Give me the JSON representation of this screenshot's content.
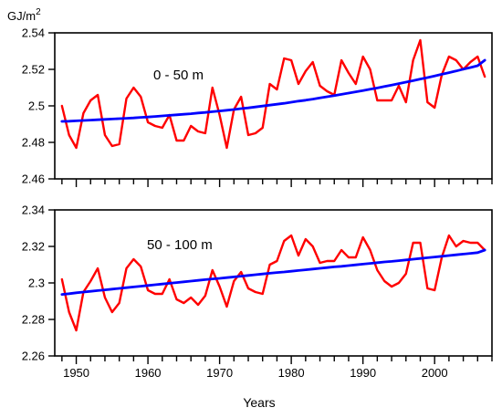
{
  "figure": {
    "unit_label": "GJ/m",
    "unit_superscript": "2",
    "x_axis_title": "Years"
  },
  "chart_data": [
    {
      "type": "line",
      "panel_label": "0 - 50 m",
      "x": [
        1948,
        1949,
        1950,
        1951,
        1952,
        1953,
        1954,
        1955,
        1956,
        1957,
        1958,
        1959,
        1960,
        1961,
        1962,
        1963,
        1964,
        1965,
        1966,
        1967,
        1968,
        1969,
        1970,
        1971,
        1972,
        1973,
        1974,
        1975,
        1976,
        1977,
        1978,
        1979,
        1980,
        1981,
        1982,
        1983,
        1984,
        1985,
        1986,
        1987,
        1988,
        1989,
        1990,
        1991,
        1992,
        1993,
        1994,
        1995,
        1996,
        1997,
        1998,
        1999,
        2000,
        2001,
        2002,
        2003,
        2004,
        2005,
        2006,
        2007
      ],
      "series": [
        {
          "color": "#ff0000",
          "values": [
            2.5,
            2.484,
            2.477,
            2.496,
            2.503,
            2.506,
            2.484,
            2.478,
            2.479,
            2.504,
            2.51,
            2.505,
            2.491,
            2.489,
            2.488,
            2.495,
            2.481,
            2.481,
            2.489,
            2.486,
            2.485,
            2.51,
            2.495,
            2.477,
            2.498,
            2.505,
            2.484,
            2.485,
            2.488,
            2.512,
            2.509,
            2.526,
            2.525,
            2.512,
            2.519,
            2.524,
            2.511,
            2.508,
            2.506,
            2.525,
            2.518,
            2.512,
            2.527,
            2.52,
            2.503,
            2.503,
            2.503,
            2.511,
            2.502,
            2.525,
            2.536,
            2.502,
            2.499,
            2.517,
            2.527,
            2.525,
            2.52,
            2.524,
            2.527,
            2.516
          ]
        },
        {
          "color": "#0000ff",
          "values": [
            2.4915,
            2.4916,
            2.4918,
            2.492,
            2.4922,
            2.4924,
            2.4926,
            2.4928,
            2.493,
            2.4932,
            2.4934,
            2.4937,
            2.4939,
            2.4942,
            2.4945,
            2.4948,
            2.4951,
            2.4954,
            2.4957,
            2.4961,
            2.4964,
            2.4968,
            2.4972,
            2.4976,
            2.498,
            2.4985,
            2.4989,
            2.4994,
            2.4999,
            2.5004,
            2.5009,
            2.5014,
            2.502,
            2.5026,
            2.5031,
            2.5037,
            2.5044,
            2.505,
            2.5056,
            2.5063,
            2.507,
            2.5077,
            2.5084,
            2.5091,
            2.5098,
            2.5106,
            2.5114,
            2.5122,
            2.513,
            2.5138,
            2.5147,
            2.5155,
            2.5164,
            2.5173,
            2.5182,
            2.5191,
            2.5201,
            2.521,
            2.522,
            2.525
          ]
        }
      ],
      "ylim": [
        2.46,
        2.54
      ],
      "yticks": [
        2.46,
        2.48,
        2.5,
        2.52,
        2.54
      ],
      "ytick_labels": [
        "2.46",
        "2.48",
        "2.5",
        "2.52",
        "2.54"
      ]
    },
    {
      "type": "line",
      "panel_label": "50 - 100 m",
      "x": [
        1948,
        1949,
        1950,
        1951,
        1952,
        1953,
        1954,
        1955,
        1956,
        1957,
        1958,
        1959,
        1960,
        1961,
        1962,
        1963,
        1964,
        1965,
        1966,
        1967,
        1968,
        1969,
        1970,
        1971,
        1972,
        1973,
        1974,
        1975,
        1976,
        1977,
        1978,
        1979,
        1980,
        1981,
        1982,
        1983,
        1984,
        1985,
        1986,
        1987,
        1988,
        1989,
        1990,
        1991,
        1992,
        1993,
        1994,
        1995,
        1996,
        1997,
        1998,
        1999,
        2000,
        2001,
        2002,
        2003,
        2004,
        2005,
        2006,
        2007
      ],
      "series": [
        {
          "color": "#ff0000",
          "values": [
            2.302,
            2.284,
            2.274,
            2.295,
            2.301,
            2.308,
            2.292,
            2.284,
            2.289,
            2.308,
            2.313,
            2.309,
            2.296,
            2.294,
            2.294,
            2.302,
            2.291,
            2.289,
            2.292,
            2.288,
            2.293,
            2.307,
            2.298,
            2.287,
            2.301,
            2.306,
            2.297,
            2.295,
            2.294,
            2.31,
            2.312,
            2.323,
            2.326,
            2.315,
            2.324,
            2.32,
            2.311,
            2.312,
            2.312,
            2.318,
            2.314,
            2.314,
            2.325,
            2.318,
            2.307,
            2.301,
            2.298,
            2.3,
            2.305,
            2.322,
            2.322,
            2.297,
            2.296,
            2.314,
            2.326,
            2.32,
            2.323,
            2.322,
            2.322,
            2.318
          ]
        },
        {
          "color": "#0000ff",
          "values": [
            2.2937,
            2.2941,
            2.2946,
            2.295,
            2.2954,
            2.2958,
            2.2962,
            2.2966,
            2.297,
            2.2974,
            2.2978,
            2.2982,
            2.2986,
            2.299,
            2.2994,
            2.2998,
            2.3002,
            2.3006,
            2.301,
            2.3014,
            2.3018,
            2.3022,
            2.3025,
            2.3029,
            2.3033,
            2.3037,
            2.3041,
            2.3045,
            2.3049,
            2.3053,
            2.3057,
            2.306,
            2.3064,
            2.3068,
            2.3072,
            2.3076,
            2.308,
            2.3084,
            2.3088,
            2.3091,
            2.3095,
            2.3099,
            2.3103,
            2.3107,
            2.3111,
            2.3115,
            2.3118,
            2.3122,
            2.3126,
            2.313,
            2.3134,
            2.3138,
            2.3142,
            2.3146,
            2.315,
            2.3154,
            2.3158,
            2.3162,
            2.3166,
            2.318
          ]
        }
      ],
      "ylim": [
        2.26,
        2.34
      ],
      "yticks": [
        2.26,
        2.28,
        2.3,
        2.32,
        2.34
      ],
      "ytick_labels": [
        "2.26",
        "2.28",
        "2.3",
        "2.32",
        "2.34"
      ]
    }
  ],
  "x_axis": {
    "xlim": [
      1947,
      2008
    ],
    "ticks": [
      1950,
      1960,
      1970,
      1980,
      1990,
      2000
    ],
    "tick_labels": [
      "1950",
      "1960",
      "1970",
      "1980",
      "1990",
      "2000"
    ],
    "minor_step": 2
  }
}
